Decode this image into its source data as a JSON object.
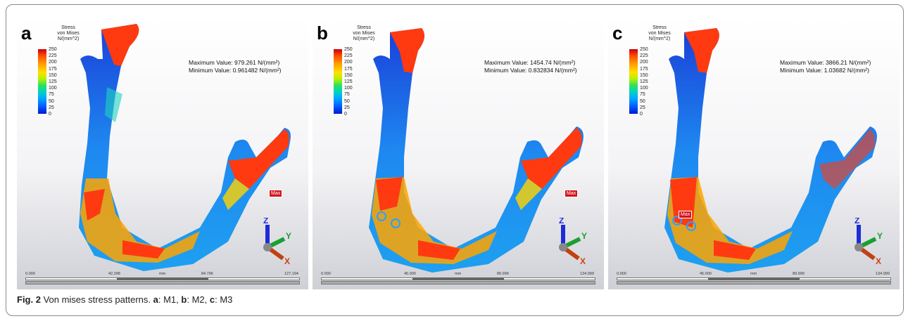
{
  "legend": {
    "title": [
      "Stress",
      "von Mises",
      "N/(mm^2)"
    ],
    "ticks": [
      "250",
      "225",
      "200",
      "175",
      "150",
      "125",
      "100",
      "75",
      "50",
      "25",
      "0"
    ]
  },
  "max_tag": "Max",
  "axis_labels": {
    "z": "Z",
    "y": "Y",
    "x": "X"
  },
  "scale_unit": "mm",
  "panels": [
    {
      "letter": "a",
      "max_value": "Maximum Value: 979.261 N/(mm²)",
      "min_value": "Minimum Value: 0.961482 N/(mm²)",
      "scale": [
        "0.000",
        "42.398",
        "84.796",
        "127.194"
      ]
    },
    {
      "letter": "b",
      "max_value": "Maximum Value: 1454.74 N/(mm²)",
      "min_value": "Minimum Value: 0.832834 N/(mm²)",
      "scale": [
        "0.000",
        "45.000",
        "89.999",
        "134.999"
      ]
    },
    {
      "letter": "c",
      "max_value": "Maximum Value: 3866.21 N/(mm²)",
      "min_value": "Minimum Value: 1.03682 N/(mm²)",
      "scale": [
        "0.000",
        "45.000",
        "89.999",
        "134.999"
      ]
    }
  ],
  "caption": {
    "label": "Fig. 2",
    "text": " Von mises stress patterns. ",
    "a": "a",
    "a_text": ": M1, ",
    "b": "b",
    "b_text": ": M2, ",
    "c": "c",
    "c_text": ": M3"
  }
}
